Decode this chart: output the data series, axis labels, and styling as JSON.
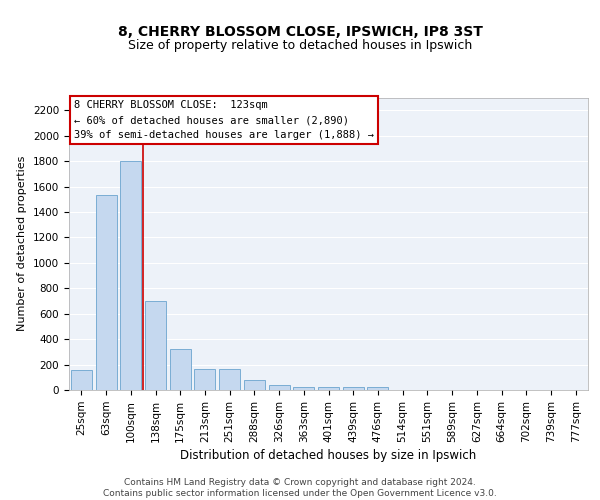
{
  "title": "8, CHERRY BLOSSOM CLOSE, IPSWICH, IP8 3ST",
  "subtitle": "Size of property relative to detached houses in Ipswich",
  "xlabel": "Distribution of detached houses by size in Ipswich",
  "ylabel": "Number of detached properties",
  "categories": [
    "25sqm",
    "63sqm",
    "100sqm",
    "138sqm",
    "175sqm",
    "213sqm",
    "251sqm",
    "288sqm",
    "326sqm",
    "363sqm",
    "401sqm",
    "439sqm",
    "476sqm",
    "514sqm",
    "551sqm",
    "589sqm",
    "627sqm",
    "664sqm",
    "702sqm",
    "739sqm",
    "777sqm"
  ],
  "values": [
    160,
    1530,
    1800,
    700,
    320,
    165,
    165,
    80,
    40,
    25,
    20,
    20,
    20,
    0,
    0,
    0,
    0,
    0,
    0,
    0,
    0
  ],
  "bar_color": "#c5d8ef",
  "bar_edge_color": "#7aadd4",
  "vline_x_index": 2.5,
  "vline_color": "#cc0000",
  "annotation_text": "8 CHERRY BLOSSOM CLOSE:  123sqm\n← 60% of detached houses are smaller (2,890)\n39% of semi-detached houses are larger (1,888) →",
  "annotation_box_facecolor": "#ffffff",
  "annotation_box_edgecolor": "#cc0000",
  "ylim": [
    0,
    2300
  ],
  "yticks": [
    0,
    200,
    400,
    600,
    800,
    1000,
    1200,
    1400,
    1600,
    1800,
    2000,
    2200
  ],
  "plot_bg_color": "#edf2f9",
  "footer_text": "Contains HM Land Registry data © Crown copyright and database right 2024.\nContains public sector information licensed under the Open Government Licence v3.0.",
  "title_fontsize": 10,
  "subtitle_fontsize": 9,
  "xlabel_fontsize": 8.5,
  "ylabel_fontsize": 8,
  "tick_fontsize": 7.5,
  "annotation_fontsize": 7.5,
  "footer_fontsize": 6.5
}
